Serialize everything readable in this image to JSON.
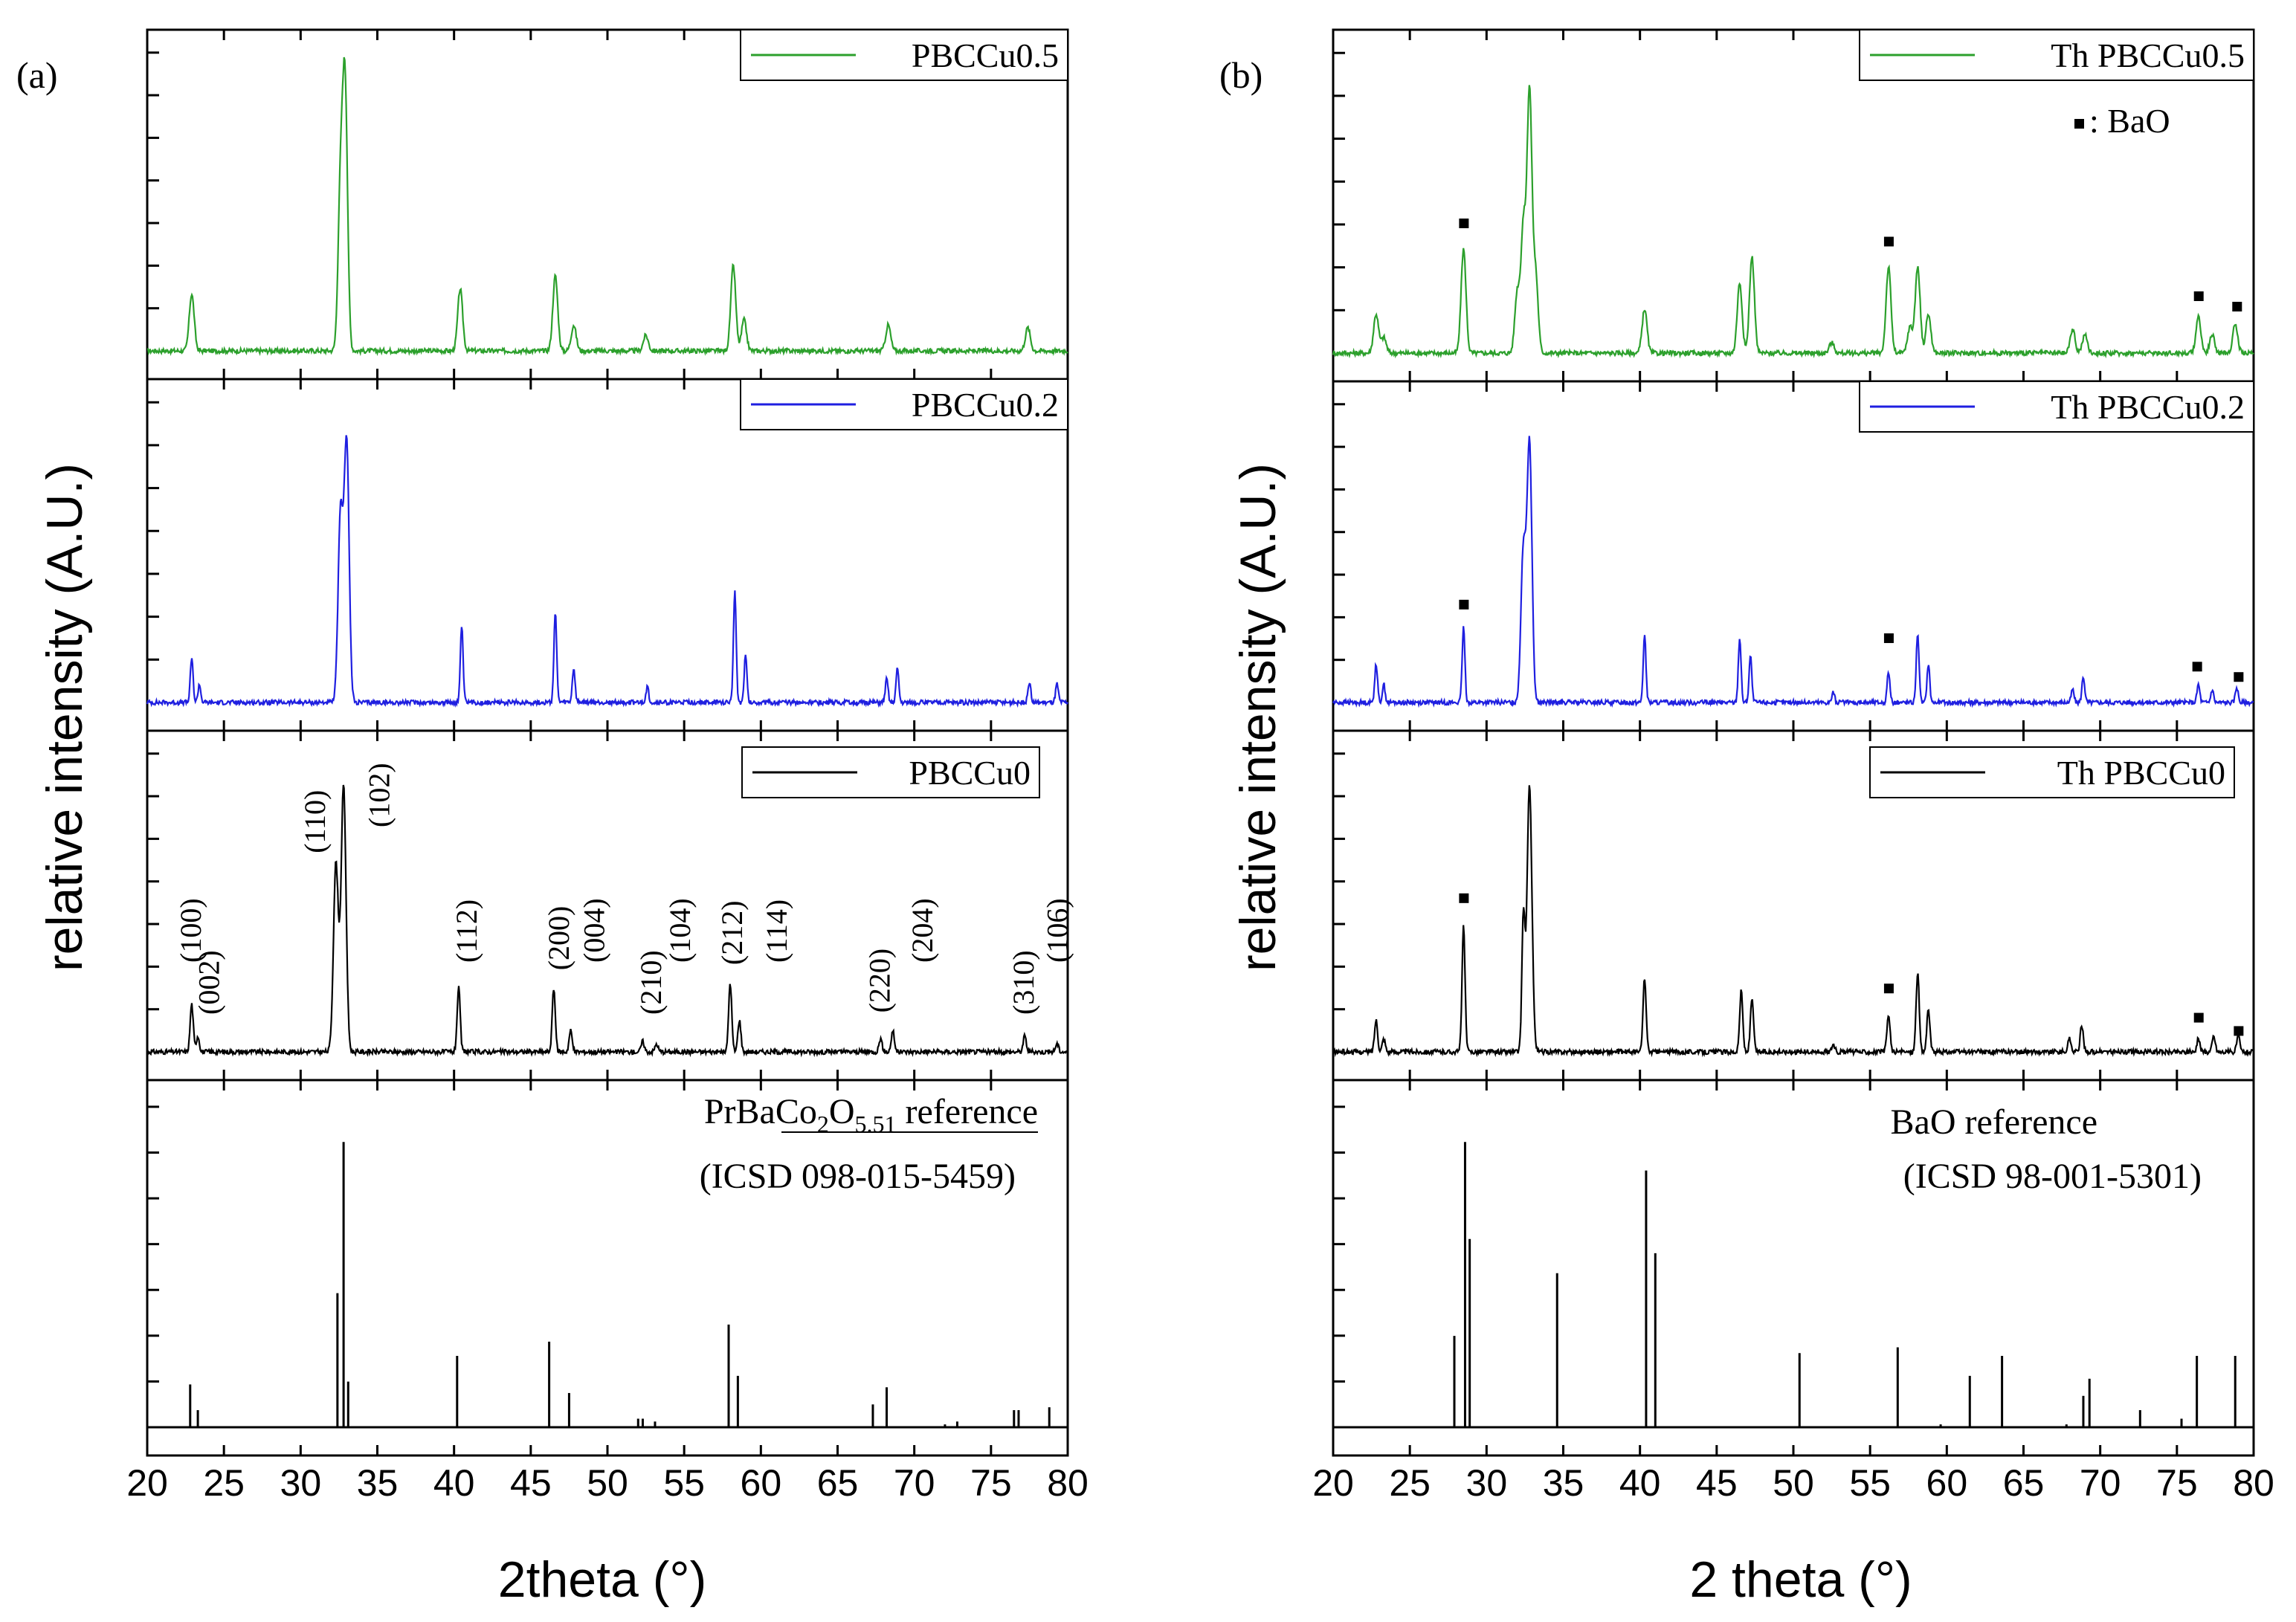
{
  "chart_data": [
    {
      "panel_label": "(a)",
      "type": "line",
      "xlabel": "2theta (°)",
      "ylabel": "relative intensity (A.U.)",
      "xlim": [
        20,
        80
      ],
      "xticks": [
        20,
        25,
        30,
        35,
        40,
        45,
        50,
        55,
        60,
        65,
        70,
        75,
        80
      ],
      "stacked_subplots": [
        {
          "legend": "PBCCu0.5",
          "color": "#2ca02c",
          "peaks": [
            {
              "x": 22.9,
              "y": 0.22
            },
            {
              "x": 32.6,
              "y": 0.62
            },
            {
              "x": 32.9,
              "y": 1.0
            },
            {
              "x": 40.4,
              "y": 0.24
            },
            {
              "x": 46.6,
              "y": 0.29
            },
            {
              "x": 47.8,
              "y": 0.1
            },
            {
              "x": 52.5,
              "y": 0.06
            },
            {
              "x": 58.2,
              "y": 0.33
            },
            {
              "x": 58.9,
              "y": 0.12
            },
            {
              "x": 68.3,
              "y": 0.1
            },
            {
              "x": 77.4,
              "y": 0.09
            }
          ]
        },
        {
          "legend": "PBCCu0.2",
          "color": "#1f1fe0",
          "peaks": [
            {
              "x": 22.9,
              "y": 0.17
            },
            {
              "x": 23.4,
              "y": 0.07
            },
            {
              "x": 32.6,
              "y": 0.72
            },
            {
              "x": 33.0,
              "y": 1.0
            },
            {
              "x": 40.5,
              "y": 0.29
            },
            {
              "x": 46.6,
              "y": 0.35
            },
            {
              "x": 47.8,
              "y": 0.13
            },
            {
              "x": 52.6,
              "y": 0.06
            },
            {
              "x": 58.3,
              "y": 0.43
            },
            {
              "x": 59.0,
              "y": 0.18
            },
            {
              "x": 68.2,
              "y": 0.09
            },
            {
              "x": 68.9,
              "y": 0.13
            },
            {
              "x": 77.5,
              "y": 0.08
            },
            {
              "x": 79.3,
              "y": 0.07
            }
          ]
        },
        {
          "legend": "PBCCu0",
          "color": "#000000",
          "peaks": [
            {
              "x": 22.9,
              "y": 0.18
            },
            {
              "x": 23.3,
              "y": 0.06
            },
            {
              "x": 32.3,
              "y": 0.71
            },
            {
              "x": 32.8,
              "y": 1.0
            },
            {
              "x": 40.3,
              "y": 0.24
            },
            {
              "x": 46.5,
              "y": 0.24
            },
            {
              "x": 47.6,
              "y": 0.08
            },
            {
              "x": 52.3,
              "y": 0.04
            },
            {
              "x": 53.2,
              "y": 0.03
            },
            {
              "x": 58.0,
              "y": 0.26
            },
            {
              "x": 58.6,
              "y": 0.12
            },
            {
              "x": 67.8,
              "y": 0.05
            },
            {
              "x": 68.6,
              "y": 0.08
            },
            {
              "x": 77.2,
              "y": 0.06
            },
            {
              "x": 79.3,
              "y": 0.03
            }
          ],
          "annotations": [
            {
              "text": "(100)",
              "x": 22.9
            },
            {
              "text": "(002)",
              "x": 24.1
            },
            {
              "text": "(110)",
              "x": 31.0
            },
            {
              "text": "(102)",
              "x": 35.2
            },
            {
              "text": "(112)",
              "x": 40.9
            },
            {
              "text": "(200)",
              "x": 46.9
            },
            {
              "text": "(004)",
              "x": 49.2
            },
            {
              "text": "(210)",
              "x": 52.9
            },
            {
              "text": "(104)",
              "x": 54.8
            },
            {
              "text": "(212)",
              "x": 58.2
            },
            {
              "text": "(114)",
              "x": 61.1
            },
            {
              "text": "(220)",
              "x": 67.8
            },
            {
              "text": "(204)",
              "x": 70.6
            },
            {
              "text": "(310)",
              "x": 77.2
            },
            {
              "text": "(106)",
              "x": 79.4
            }
          ]
        },
        {
          "legend": "PrBaCo2O5.51 reference",
          "ref_title": "PrBaCo",
          "ref_sub1": "2",
          "ref_mid": "O",
          "ref_sub2": "5.51",
          "ref_tail": " reference",
          "ref_source": "(ICSD 098-015-5459)",
          "color": "#000000",
          "type": "stick",
          "sticks": [
            {
              "x": 22.8,
              "y": 0.15
            },
            {
              "x": 23.3,
              "y": 0.06
            },
            {
              "x": 32.4,
              "y": 0.47
            },
            {
              "x": 32.8,
              "y": 1.0
            },
            {
              "x": 33.1,
              "y": 0.16
            },
            {
              "x": 40.2,
              "y": 0.25
            },
            {
              "x": 46.2,
              "y": 0.3
            },
            {
              "x": 47.5,
              "y": 0.12
            },
            {
              "x": 52.0,
              "y": 0.03
            },
            {
              "x": 52.3,
              "y": 0.03
            },
            {
              "x": 53.1,
              "y": 0.02
            },
            {
              "x": 57.9,
              "y": 0.36
            },
            {
              "x": 58.5,
              "y": 0.18
            },
            {
              "x": 67.3,
              "y": 0.08
            },
            {
              "x": 68.2,
              "y": 0.14
            },
            {
              "x": 72.0,
              "y": 0.01
            },
            {
              "x": 72.8,
              "y": 0.02
            },
            {
              "x": 76.5,
              "y": 0.06
            },
            {
              "x": 76.8,
              "y": 0.06
            },
            {
              "x": 78.8,
              "y": 0.07
            }
          ]
        }
      ]
    },
    {
      "panel_label": "(b)",
      "type": "line",
      "xlabel": "2 theta (°)",
      "ylabel": "relative intensity (A.U.)",
      "xlim": [
        20,
        80
      ],
      "xticks": [
        20,
        25,
        30,
        35,
        40,
        45,
        50,
        55,
        60,
        65,
        70,
        75,
        80
      ],
      "marker_legend": ": BaO",
      "stacked_subplots": [
        {
          "legend": "Th PBCCu0.5",
          "color": "#2ca02c",
          "peaks": [
            {
              "x": 22.8,
              "y": 0.15
            },
            {
              "x": 23.3,
              "y": 0.06
            },
            {
              "x": 28.5,
              "y": 0.4
            },
            {
              "x": 32.0,
              "y": 0.23
            },
            {
              "x": 32.4,
              "y": 0.48
            },
            {
              "x": 32.8,
              "y": 1.0
            },
            {
              "x": 33.2,
              "y": 0.3
            },
            {
              "x": 40.3,
              "y": 0.17
            },
            {
              "x": 46.5,
              "y": 0.27
            },
            {
              "x": 47.3,
              "y": 0.37
            },
            {
              "x": 52.5,
              "y": 0.04
            },
            {
              "x": 56.2,
              "y": 0.33
            },
            {
              "x": 57.6,
              "y": 0.1
            },
            {
              "x": 58.1,
              "y": 0.33
            },
            {
              "x": 58.8,
              "y": 0.15
            },
            {
              "x": 68.2,
              "y": 0.09
            },
            {
              "x": 69.0,
              "y": 0.07
            },
            {
              "x": 76.4,
              "y": 0.14
            },
            {
              "x": 77.3,
              "y": 0.07
            },
            {
              "x": 78.8,
              "y": 0.11
            }
          ],
          "bao_markers": [
            {
              "x": 28.5,
              "y": 0.5
            },
            {
              "x": 56.2,
              "y": 0.43
            },
            {
              "x": 76.4,
              "y": 0.22
            },
            {
              "x": 78.9,
              "y": 0.18
            }
          ]
        },
        {
          "legend": "Th PBCCu0.2",
          "color": "#1f1fe0",
          "peaks": [
            {
              "x": 22.8,
              "y": 0.15
            },
            {
              "x": 23.3,
              "y": 0.07
            },
            {
              "x": 28.5,
              "y": 0.29
            },
            {
              "x": 32.4,
              "y": 0.59
            },
            {
              "x": 32.8,
              "y": 1.0
            },
            {
              "x": 40.3,
              "y": 0.26
            },
            {
              "x": 46.5,
              "y": 0.25
            },
            {
              "x": 47.2,
              "y": 0.18
            },
            {
              "x": 52.6,
              "y": 0.04
            },
            {
              "x": 56.2,
              "y": 0.12
            },
            {
              "x": 58.1,
              "y": 0.27
            },
            {
              "x": 58.8,
              "y": 0.15
            },
            {
              "x": 68.2,
              "y": 0.05
            },
            {
              "x": 68.9,
              "y": 0.1
            },
            {
              "x": 76.4,
              "y": 0.07
            },
            {
              "x": 77.3,
              "y": 0.05
            },
            {
              "x": 78.9,
              "y": 0.06
            }
          ],
          "bao_markers": [
            {
              "x": 28.5,
              "y": 0.38
            },
            {
              "x": 56.2,
              "y": 0.25
            },
            {
              "x": 76.3,
              "y": 0.14
            },
            {
              "x": 79.0,
              "y": 0.1
            }
          ]
        },
        {
          "legend": "Th PBCCu0",
          "color": "#000000",
          "peaks": [
            {
              "x": 22.8,
              "y": 0.12
            },
            {
              "x": 23.3,
              "y": 0.05
            },
            {
              "x": 28.5,
              "y": 0.47
            },
            {
              "x": 32.4,
              "y": 0.5
            },
            {
              "x": 32.8,
              "y": 1.0
            },
            {
              "x": 40.3,
              "y": 0.28
            },
            {
              "x": 46.6,
              "y": 0.23
            },
            {
              "x": 47.3,
              "y": 0.2
            },
            {
              "x": 52.6,
              "y": 0.03
            },
            {
              "x": 56.2,
              "y": 0.14
            },
            {
              "x": 58.1,
              "y": 0.3
            },
            {
              "x": 58.8,
              "y": 0.16
            },
            {
              "x": 68.0,
              "y": 0.05
            },
            {
              "x": 68.8,
              "y": 0.1
            },
            {
              "x": 76.4,
              "y": 0.05
            },
            {
              "x": 77.4,
              "y": 0.06
            },
            {
              "x": 79.0,
              "y": 0.06
            }
          ],
          "bao_markers": [
            {
              "x": 28.5,
              "y": 0.58
            },
            {
              "x": 56.2,
              "y": 0.24
            },
            {
              "x": 76.4,
              "y": 0.13
            },
            {
              "x": 79.0,
              "y": 0.08
            }
          ]
        },
        {
          "legend": "BaO reference",
          "ref_title": "BaO reference",
          "ref_source": "(ICSD 98-001-5301)",
          "color": "#000000",
          "type": "stick",
          "sticks": [
            {
              "x": 27.9,
              "y": 0.32
            },
            {
              "x": 28.6,
              "y": 1.0
            },
            {
              "x": 28.9,
              "y": 0.66
            },
            {
              "x": 34.6,
              "y": 0.54
            },
            {
              "x": 40.4,
              "y": 0.9
            },
            {
              "x": 41.0,
              "y": 0.61
            },
            {
              "x": 50.4,
              "y": 0.26
            },
            {
              "x": 56.8,
              "y": 0.28
            },
            {
              "x": 59.6,
              "y": 0.01
            },
            {
              "x": 61.5,
              "y": 0.18
            },
            {
              "x": 63.6,
              "y": 0.25
            },
            {
              "x": 67.8,
              "y": 0.01
            },
            {
              "x": 68.9,
              "y": 0.11
            },
            {
              "x": 69.3,
              "y": 0.17
            },
            {
              "x": 72.6,
              "y": 0.06
            },
            {
              "x": 75.3,
              "y": 0.03
            },
            {
              "x": 76.3,
              "y": 0.25
            },
            {
              "x": 78.8,
              "y": 0.25
            }
          ]
        }
      ]
    }
  ]
}
